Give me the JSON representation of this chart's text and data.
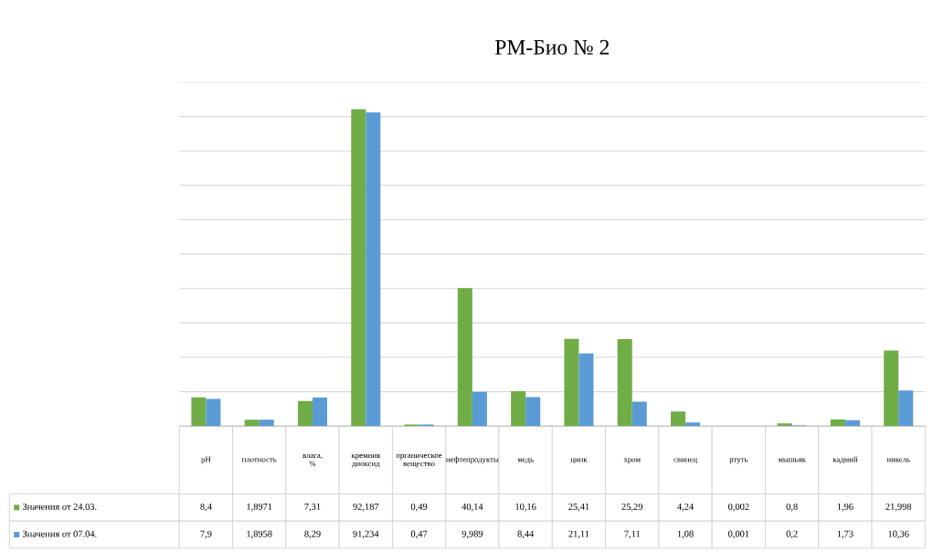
{
  "chart_data": {
    "type": "bar",
    "title": "РМ-Био № 2",
    "categories": [
      "рН",
      "плотность",
      "влага, %",
      "кремния диоксид",
      "органическое вещество",
      "нефтепродукты",
      "медь",
      "цинк",
      "хром",
      "свинец",
      "ртуть",
      "мышьяк",
      "кадмий",
      "никель"
    ],
    "series": [
      {
        "name": "Значения от 24.03.",
        "color": "#70ad47",
        "values": [
          8.4,
          1.8971,
          7.31,
          92.187,
          0.49,
          40.14,
          10.16,
          25.41,
          25.29,
          4.24,
          0.002,
          0.8,
          1.96,
          21.998
        ],
        "value_labels": [
          "8,4",
          "1,8971",
          "7,31",
          "92,187",
          "0,49",
          "40,14",
          "10,16",
          "25,41",
          "25,29",
          "4,24",
          "0,002",
          "0,8",
          "1,96",
          "21,998"
        ]
      },
      {
        "name": "Значения от 07.04.",
        "color": "#5b9bd5",
        "values": [
          7.9,
          1.8958,
          8.29,
          91.234,
          0.47,
          9.989,
          8.44,
          21.11,
          7.11,
          1.08,
          0.001,
          0.2,
          1.73,
          10.36
        ],
        "value_labels": [
          "7,9",
          "1,8958",
          "8,29",
          "91,234",
          "0,47",
          "9,989",
          "8,44",
          "21,11",
          "7,11",
          "1,08",
          "0,001",
          "0,2",
          "1,73",
          "10,36"
        ]
      }
    ],
    "ylim": [
      0,
      100
    ],
    "yticks": [
      {
        "value": 0,
        "label": null
      },
      {
        "value": 10,
        "label": null
      },
      {
        "value": 20,
        "label": null
      },
      {
        "value": 30,
        "label": null
      },
      {
        "value": 40,
        "label": null
      },
      {
        "value": 50,
        "label": null
      },
      {
        "value": 60,
        "label": null
      },
      {
        "value": 70,
        "label": null
      },
      {
        "value": 80,
        "label": null
      },
      {
        "value": 90,
        "label": null
      },
      {
        "value": 100,
        "label": null
      }
    ],
    "grid": "y",
    "legend": "bottom left"
  }
}
